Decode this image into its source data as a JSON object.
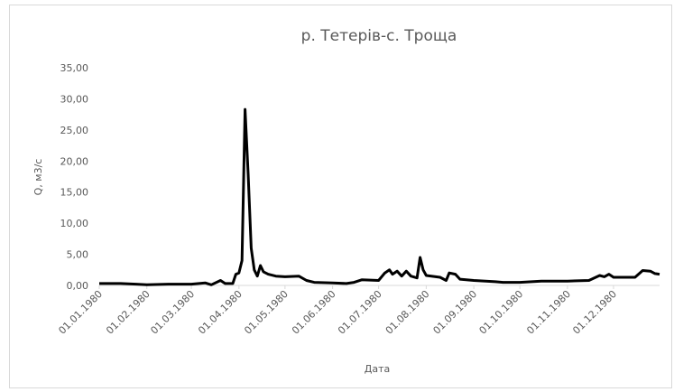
{
  "chart_data": {
    "type": "line",
    "title": "р. Тетерів-с. Троща",
    "xlabel": "Дата",
    "ylabel": "Q, м3/с",
    "series": [
      {
        "color": "#000000",
        "x": [
          "01.01.1980",
          "15.01.1980",
          "25.01.1980",
          "01.02.1980",
          "15.02.1980",
          "01.03.1980",
          "10.03.1980",
          "14.03.1980",
          "20.03.1980",
          "23.03.1980",
          "28.03.1980",
          "30.03.1980",
          "01.04.1980",
          "03.04.1980",
          "05.04.1980",
          "07.04.1980",
          "09.04.1980",
          "11.04.1980",
          "13.04.1980",
          "15.04.1980",
          "17.04.1980",
          "20.04.1980",
          "25.04.1980",
          "01.05.1980",
          "10.05.1980",
          "15.05.1980",
          "20.05.1980",
          "01.06.1980",
          "10.06.1980",
          "15.06.1980",
          "20.06.1980",
          "01.07.1980",
          "05.07.1980",
          "08.07.1980",
          "10.07.1980",
          "13.07.1980",
          "16.07.1980",
          "19.07.1980",
          "22.07.1980",
          "26.07.1980",
          "28.07.1980",
          "30.07.1980",
          "01.08.1980",
          "10.08.1980",
          "14.08.1980",
          "16.08.1980",
          "20.08.1980",
          "23.08.1980",
          "01.09.1980",
          "15.09.1980",
          "20.09.1980",
          "01.10.1980",
          "15.10.1980",
          "01.11.1980",
          "15.11.1980",
          "22.11.1980",
          "25.11.1980",
          "28.11.1980",
          "01.12.1980",
          "15.12.1980",
          "20.12.1980",
          "25.12.1980",
          "28.12.1980",
          "31.12.1980"
        ],
        "values": [
          0.3,
          0.3,
          0.2,
          0.1,
          0.2,
          0.2,
          0.4,
          0.1,
          0.8,
          0.3,
          0.3,
          1.8,
          2.0,
          4.0,
          28.3,
          18.0,
          6.0,
          2.5,
          1.5,
          3.2,
          2.2,
          1.8,
          1.5,
          1.4,
          1.5,
          0.8,
          0.5,
          0.4,
          0.3,
          0.5,
          0.9,
          0.8,
          2.0,
          2.5,
          1.8,
          2.3,
          1.5,
          2.3,
          1.5,
          1.2,
          4.5,
          2.5,
          1.6,
          1.3,
          0.8,
          2.0,
          1.8,
          1.0,
          0.8,
          0.6,
          0.5,
          0.5,
          0.7,
          0.7,
          0.8,
          1.6,
          1.4,
          1.8,
          1.3,
          1.3,
          2.4,
          2.3,
          1.9,
          1.8
        ]
      }
    ],
    "xlim": [
      "01.01.1980",
      "31.12.1980"
    ],
    "xticks": [
      "01.01.1980",
      "01.02.1980",
      "01.03.1980",
      "01.04.1980",
      "01.05.1980",
      "01.06.1980",
      "01.07.1980",
      "01.08.1980",
      "01.09.1980",
      "01.10.1980",
      "01.11.1980",
      "01.12.1980"
    ],
    "ylim": [
      0,
      35
    ],
    "yticks": [
      {
        "value": 0,
        "label": "0,00"
      },
      {
        "value": 5,
        "label": "5,00"
      },
      {
        "value": 10,
        "label": "10,00"
      },
      {
        "value": 15,
        "label": "15,00"
      },
      {
        "value": 20,
        "label": "20,00"
      },
      {
        "value": 25,
        "label": "25,00"
      },
      {
        "value": 30,
        "label": "30,00"
      },
      {
        "value": 35,
        "label": "35,00"
      }
    ],
    "grid": false
  }
}
